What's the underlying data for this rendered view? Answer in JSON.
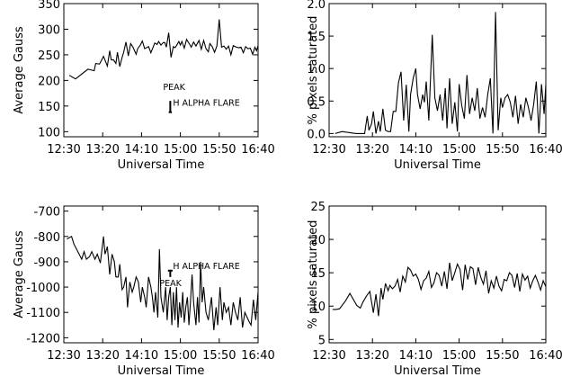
{
  "chart_data": [
    {
      "type": "line",
      "xlabel": "Universal Time",
      "ylabel": "Average Gauss",
      "xticks": [
        "12:30",
        "13:20",
        "14:10",
        "15:00",
        "15:50",
        "16:40"
      ],
      "xlim": [
        "12:30",
        "16:40"
      ],
      "yticks": [
        100,
        150,
        200,
        250,
        300,
        350
      ],
      "ylim": [
        90,
        350
      ],
      "annotations": {
        "peak": "PEAK",
        "flare": "H ALPHA FLARE"
      },
      "markers": [
        {
          "type": "flare_start",
          "x": "14:47",
          "y_range": [
            138,
            160
          ]
        },
        {
          "type": "peak_bar",
          "x_range": [
            "14:45",
            "14:49"
          ],
          "y": 138
        }
      ],
      "series": [
        {
          "x": [
            "12:37",
            "12:45",
            "13:01",
            "13:09",
            "13:11",
            "13:16",
            "13:21",
            "13:26",
            "13:29",
            "13:31",
            "13:34",
            "13:37",
            "13:39",
            "13:42",
            "13:45",
            "13:47",
            "13:50",
            "13:53",
            "13:56",
            "13:59",
            "14:03",
            "14:05",
            "14:08",
            "14:11",
            "14:14",
            "14:19",
            "14:22",
            "14:27",
            "14:30",
            "14:32",
            "14:35",
            "14:38",
            "14:40",
            "14:42",
            "14:45",
            "14:48",
            "14:51",
            "14:53",
            "14:55",
            "14:58",
            "15:00",
            "15:02",
            "15:05",
            "15:08",
            "15:12",
            "15:14",
            "15:17",
            "15:20",
            "15:24",
            "15:27",
            "15:30",
            "15:33",
            "15:36",
            "15:38",
            "15:41",
            "15:44",
            "15:47",
            "15:50",
            "15:53",
            "15:56",
            "15:59",
            "16:02",
            "16:05",
            "16:08",
            "16:12",
            "16:15",
            "16:18",
            "16:21",
            "16:24",
            "16:27",
            "16:30",
            "16:33",
            "16:36",
            "16:38",
            "16:40"
          ],
          "y": [
            210,
            203,
            222,
            219,
            233,
            232,
            247,
            228,
            258,
            240,
            240,
            233,
            255,
            227,
            245,
            255,
            275,
            248,
            272,
            265,
            251,
            262,
            268,
            277,
            262,
            266,
            254,
            273,
            270,
            276,
            269,
            274,
            274,
            265,
            293,
            245,
            266,
            264,
            268,
            276,
            269,
            276,
            263,
            280,
            270,
            265,
            275,
            267,
            278,
            261,
            278,
            262,
            256,
            272,
            266,
            255,
            267,
            319,
            265,
            267,
            261,
            267,
            250,
            268,
            265,
            264,
            265,
            254,
            266,
            262,
            263,
            251,
            265,
            258,
            268
          ]
        }
      ]
    },
    {
      "type": "line",
      "xlabel": "Universal Time",
      "ylabel": "% pixels saturated",
      "xticks": [
        "12:30",
        "13:20",
        "14:10",
        "15:00",
        "15:50",
        "16:40"
      ],
      "xlim": [
        "12:30",
        "16:40"
      ],
      "yticks": [
        "0.0",
        "0.5",
        "1.0",
        "1.5",
        "2.0"
      ],
      "ylim": [
        -0.05,
        2.0
      ],
      "series": [
        {
          "x": [
            "12:37",
            "12:45",
            "13:01",
            "13:11",
            "13:14",
            "13:16",
            "13:19",
            "13:21",
            "13:24",
            "13:27",
            "13:29",
            "13:32",
            "13:35",
            "13:38",
            "13:41",
            "13:44",
            "13:47",
            "13:50",
            "13:53",
            "13:56",
            "13:59",
            "14:02",
            "14:04",
            "14:07",
            "14:10",
            "14:12",
            "14:15",
            "14:18",
            "14:20",
            "14:22",
            "14:25",
            "14:29",
            "14:32",
            "14:35",
            "14:38",
            "14:41",
            "14:44",
            "14:46",
            "14:49",
            "14:52",
            "14:55",
            "14:58",
            "15:00",
            "15:03",
            "15:06",
            "15:09",
            "15:12",
            "15:15",
            "15:18",
            "15:21",
            "15:24",
            "15:27",
            "15:30",
            "15:33",
            "15:36",
            "15:39",
            "15:42",
            "15:45",
            "15:48",
            "15:50",
            "15:53",
            "15:56",
            "15:59",
            "16:02",
            "16:05",
            "16:08",
            "16:11",
            "16:14",
            "16:17",
            "16:20",
            "16:23",
            "16:26",
            "16:29",
            "16:32",
            "16:35",
            "16:38",
            "16:40"
          ],
          "y": [
            0.0,
            0.03,
            0.0,
            0.0,
            0.27,
            0.05,
            0.15,
            0.34,
            0.0,
            0.19,
            0.03,
            0.38,
            0.05,
            0.03,
            0.03,
            0.34,
            0.34,
            0.78,
            0.95,
            0.2,
            0.75,
            0.03,
            0.6,
            0.85,
            1.0,
            0.6,
            0.38,
            0.6,
            0.48,
            0.8,
            0.2,
            1.52,
            0.55,
            0.35,
            0.6,
            0.2,
            0.7,
            0.08,
            0.85,
            0.15,
            0.48,
            0.03,
            0.76,
            0.43,
            0.23,
            0.9,
            0.3,
            0.55,
            0.35,
            0.7,
            0.23,
            0.4,
            0.25,
            0.6,
            0.85,
            0.0,
            1.87,
            0.05,
            0.55,
            0.4,
            0.55,
            0.6,
            0.48,
            0.25,
            0.58,
            0.15,
            0.45,
            0.25,
            0.55,
            0.4,
            0.2,
            0.45,
            0.8,
            0.0,
            0.76,
            0.3,
            0.75
          ]
        }
      ]
    },
    {
      "type": "line",
      "xlabel": "Universal Time",
      "ylabel": "Average Gauss",
      "xticks": [
        "12:30",
        "13:20",
        "14:10",
        "15:00",
        "15:50",
        "16:40"
      ],
      "xlim": [
        "12:30",
        "16:40"
      ],
      "yticks": [
        -700,
        -800,
        -900,
        -1000,
        -1100,
        -1200
      ],
      "ylim": [
        -1220,
        -680
      ],
      "annotations": {
        "peak": "PEAK",
        "flare": "H ALPHA FLARE"
      },
      "markers": [
        {
          "type": "flare_start",
          "x": "14:47",
          "y_range": [
            -935,
            -960
          ]
        },
        {
          "type": "peak_bar",
          "x_range": [
            "14:44",
            "14:50"
          ],
          "y": -935
        }
      ],
      "series": [
        {
          "x": [
            "12:34",
            "12:37",
            "12:40",
            "12:43",
            "12:48",
            "12:53",
            "12:56",
            "12:59",
            "13:03",
            "13:06",
            "13:10",
            "13:13",
            "13:17",
            "13:21",
            "13:23",
            "13:26",
            "13:29",
            "13:32",
            "13:35",
            "13:37",
            "13:40",
            "13:42",
            "13:45",
            "13:47",
            "13:50",
            "13:52",
            "13:55",
            "13:58",
            "14:00",
            "14:03",
            "14:06",
            "14:09",
            "14:11",
            "14:14",
            "14:16",
            "14:19",
            "14:22",
            "14:24",
            "14:26",
            "14:28",
            "14:31",
            "14:33",
            "14:35",
            "14:38",
            "14:41",
            "14:43",
            "14:45",
            "14:47",
            "14:49",
            "14:51",
            "14:53",
            "14:55",
            "14:57",
            "14:59",
            "15:01",
            "15:03",
            "15:05",
            "15:07",
            "15:09",
            "15:11",
            "15:13",
            "15:15",
            "15:17",
            "15:20",
            "15:22",
            "15:24",
            "15:26",
            "15:28",
            "15:30",
            "15:33",
            "15:36",
            "15:40",
            "15:43",
            "15:46",
            "15:48",
            "15:51",
            "15:54",
            "15:56",
            "15:59",
            "16:02",
            "16:05",
            "16:08",
            "16:11",
            "16:14",
            "16:17",
            "16:20",
            "16:23",
            "16:26",
            "16:29",
            "16:31",
            "16:34",
            "16:37",
            "16:40"
          ],
          "y": [
            -810,
            -805,
            -800,
            -830,
            -860,
            -890,
            -860,
            -890,
            -880,
            -860,
            -890,
            -870,
            -905,
            -800,
            -870,
            -840,
            -950,
            -870,
            -900,
            -960,
            -960,
            -910,
            -1010,
            -1000,
            -960,
            -1080,
            -980,
            -1020,
            -1000,
            -960,
            -980,
            -1060,
            -1000,
            -1040,
            -1080,
            -960,
            -1000,
            -1040,
            -1100,
            -1020,
            -1120,
            -850,
            -1040,
            -1100,
            -1000,
            -1130,
            -1040,
            -1000,
            -1150,
            -1020,
            -1130,
            -1000,
            -1160,
            -1060,
            -1120,
            -1020,
            -1140,
            -1080,
            -1040,
            -1150,
            -1060,
            -950,
            -1060,
            -1150,
            -1040,
            -1140,
            -900,
            -1060,
            -1000,
            -1100,
            -1130,
            -1040,
            -1170,
            -1080,
            -1150,
            -1000,
            -1130,
            -1060,
            -1100,
            -1080,
            -1150,
            -1060,
            -1100,
            -1130,
            -1040,
            -1160,
            -1100,
            -1120,
            -1140,
            -1150,
            -1050,
            -1130,
            -1020
          ]
        }
      ]
    },
    {
      "type": "line",
      "xlabel": "Universal Time",
      "ylabel": "% pixels saturated",
      "xticks": [
        "12:30",
        "13:20",
        "14:10",
        "15:00",
        "15:50",
        "16:40"
      ],
      "xlim": [
        "12:30",
        "16:40"
      ],
      "yticks": [
        5,
        10,
        15,
        20,
        25
      ],
      "ylim": [
        4.5,
        25
      ],
      "series": [
        {
          "x": [
            "12:34",
            "12:38",
            "12:42",
            "12:49",
            "12:54",
            "13:02",
            "13:06",
            "13:09",
            "13:13",
            "13:17",
            "13:21",
            "13:24",
            "13:27",
            "13:30",
            "13:32",
            "13:35",
            "13:38",
            "13:40",
            "13:43",
            "13:46",
            "13:49",
            "13:52",
            "13:55",
            "13:58",
            "14:01",
            "14:04",
            "14:07",
            "14:10",
            "14:13",
            "14:16",
            "14:19",
            "14:22",
            "14:25",
            "14:28",
            "14:31",
            "14:34",
            "14:37",
            "14:40",
            "14:43",
            "14:46",
            "14:49",
            "14:52",
            "14:55",
            "14:58",
            "15:01",
            "15:04",
            "15:07",
            "15:10",
            "15:13",
            "15:16",
            "15:19",
            "15:22",
            "15:25",
            "15:28",
            "15:31",
            "15:34",
            "15:37",
            "15:40",
            "15:43",
            "15:46",
            "15:49",
            "15:52",
            "15:55",
            "15:58",
            "16:01",
            "16:04",
            "16:07",
            "16:10",
            "16:13",
            "16:16",
            "16:19",
            "16:22",
            "16:25",
            "16:28",
            "16:31",
            "16:34",
            "16:37",
            "16:40"
          ],
          "y": [
            9.5,
            9.5,
            9.6,
            10.8,
            11.9,
            10.1,
            9.7,
            10.6,
            11.5,
            12.2,
            9.0,
            11.8,
            8.5,
            12.7,
            11.0,
            13.4,
            12.3,
            13.1,
            12.6,
            13.0,
            14.0,
            12.1,
            14.5,
            13.6,
            15.8,
            15.4,
            14.5,
            14.8,
            14.0,
            12.5,
            13.8,
            14.2,
            15.2,
            12.8,
            13.5,
            15.0,
            14.6,
            13.0,
            15.2,
            12.6,
            16.5,
            13.8,
            15.0,
            16.3,
            15.5,
            12.4,
            16.2,
            14.0,
            15.9,
            15.6,
            13.2,
            15.8,
            14.3,
            13.3,
            15.3,
            11.9,
            13.8,
            12.7,
            14.5,
            13.0,
            12.3,
            14.0,
            13.8,
            15.0,
            14.6,
            12.8,
            14.9,
            12.2,
            14.8,
            13.9,
            14.5,
            12.7,
            13.8,
            14.6,
            13.6,
            12.4,
            13.8,
            12.9
          ]
        }
      ]
    }
  ]
}
